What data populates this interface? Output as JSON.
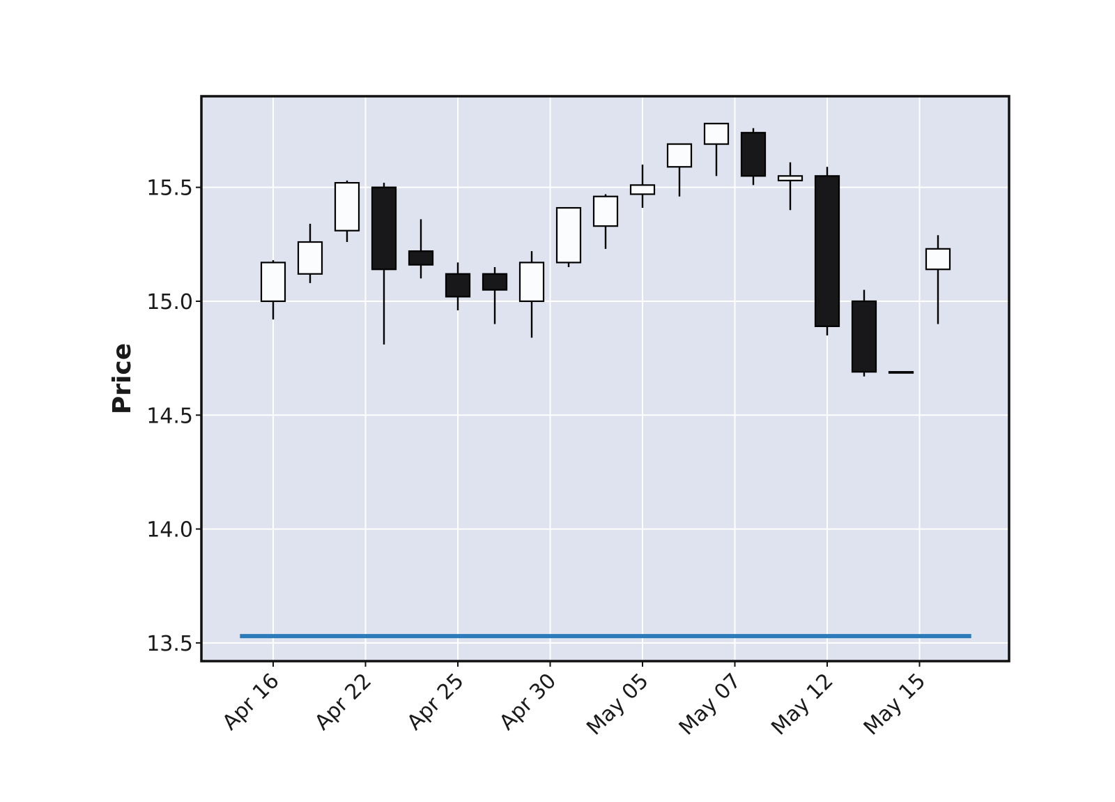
{
  "chart_data": {
    "type": "candlestick",
    "ylabel": "Price",
    "ylim": [
      13.42,
      15.9
    ],
    "yticks": [
      13.5,
      14.0,
      14.5,
      15.0,
      15.5
    ],
    "ytick_labels": [
      "13.5",
      "14.0",
      "14.5",
      "15.0",
      "15.5"
    ],
    "xtick_labels": [
      "Apr 16",
      "Apr 22",
      "Apr 25",
      "Apr 30",
      "May 05",
      "May 07",
      "May 12",
      "May 15"
    ],
    "xtick_index": [
      0,
      2.5,
      5,
      7.5,
      10,
      12.5,
      15,
      17.5
    ],
    "grid": true,
    "colors": {
      "background": "#dee3ef",
      "grid": "#ffffff",
      "frame": "#111111",
      "up_fill": "#fbfcfe",
      "down_fill": "#18181a",
      "outline": "#000000",
      "reference_line": "#2b7bba"
    },
    "candles": [
      {
        "open": 15.0,
        "high": 15.18,
        "low": 14.92,
        "close": 15.17
      },
      {
        "open": 15.12,
        "high": 15.34,
        "low": 15.08,
        "close": 15.26
      },
      {
        "open": 15.31,
        "high": 15.53,
        "low": 15.26,
        "close": 15.52
      },
      {
        "open": 15.5,
        "high": 15.52,
        "low": 14.81,
        "close": 15.14
      },
      {
        "open": 15.22,
        "high": 15.36,
        "low": 15.1,
        "close": 15.16
      },
      {
        "open": 15.12,
        "high": 15.17,
        "low": 14.96,
        "close": 15.02
      },
      {
        "open": 15.12,
        "high": 15.15,
        "low": 14.9,
        "close": 15.05
      },
      {
        "open": 15.0,
        "high": 15.22,
        "low": 14.84,
        "close": 15.17
      },
      {
        "open": 15.17,
        "high": 15.41,
        "low": 15.15,
        "close": 15.41
      },
      {
        "open": 15.33,
        "high": 15.47,
        "low": 15.23,
        "close": 15.46
      },
      {
        "open": 15.47,
        "high": 15.6,
        "low": 15.41,
        "close": 15.51
      },
      {
        "open": 15.59,
        "high": 15.69,
        "low": 15.46,
        "close": 15.69
      },
      {
        "open": 15.69,
        "high": 15.78,
        "low": 15.55,
        "close": 15.78
      },
      {
        "open": 15.74,
        "high": 15.76,
        "low": 15.51,
        "close": 15.55
      },
      {
        "open": 15.53,
        "high": 15.61,
        "low": 15.4,
        "close": 15.55
      },
      {
        "open": 15.55,
        "high": 15.59,
        "low": 14.85,
        "close": 14.89
      },
      {
        "open": 15.0,
        "high": 15.05,
        "low": 14.67,
        "close": 14.69
      },
      {
        "open": 14.69,
        "high": 14.69,
        "low": 14.69,
        "close": 14.69
      },
      {
        "open": 15.14,
        "high": 15.29,
        "low": 14.9,
        "close": 15.23
      }
    ],
    "reference_line": {
      "y": 13.53
    }
  }
}
